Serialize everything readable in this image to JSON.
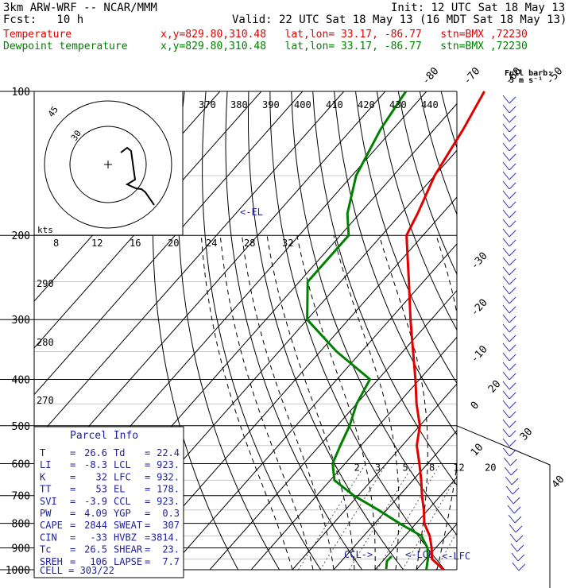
{
  "header": {
    "model": "3km ARW-WRF -- NCAR/MMM",
    "init": "Init: 12 UTC Sat 18 May 13",
    "fcst": "Fcst:   10 h",
    "valid": "Valid: 22 UTC Sat 18 May 13 (16 MDT Sat 18 May 13)",
    "temp_label": "Temperature",
    "temp_loc": "x,y=829.80,310.48   lat,lon= 33.17, -86.77   stn=BMX ,72230",
    "dew_label": "Dewpoint temperature",
    "dew_loc": "x,y=829.80,310.48   lat,lon= 33.17, -86.77   stn=BMX ,72230"
  },
  "colors": {
    "temperature": "#e00000",
    "dewpoint": "#008000",
    "parcel_text": "#2020a0",
    "barbs": "#3030b0"
  },
  "legend": {
    "full_barb": "Full barb:",
    "barb_speed": "5 m s⁻¹"
  },
  "parcel": {
    "title": "Parcel Info",
    "rows": [
      {
        "l1": "T",
        "v1": "26.6",
        "l2": "Td",
        "v2": "22.4"
      },
      {
        "l1": "LI",
        "v1": "-8.3",
        "l2": "LCL",
        "v2": "923."
      },
      {
        "l1": "K",
        "v1": "32",
        "l2": "LFC",
        "v2": "932."
      },
      {
        "l1": "TT",
        "v1": "53",
        "l2": "EL",
        "v2": "178."
      },
      {
        "l1": "SVI",
        "v1": "-3.9",
        "l2": "CCL",
        "v2": "923."
      },
      {
        "l1": "PW",
        "v1": "4.09",
        "l2": "YGP",
        "v2": "0.3"
      },
      {
        "l1": "CAPE",
        "v1": "2844",
        "l2": "SWEAT",
        "v2": "307"
      },
      {
        "l1": "CIN",
        "v1": "-33",
        "l2": "HVBZ",
        "v2": "3814."
      },
      {
        "l1": "Tc",
        "v1": "26.5",
        "l2": "SHEAR",
        "v2": "23."
      },
      {
        "l1": "SREH",
        "v1": "106",
        "l2": "LAPSE",
        "v2": "7.7"
      }
    ],
    "cell": "CELL = 303/22"
  },
  "annotations": {
    "el": "<-EL",
    "ccl": "CCL->",
    "lcl": "<-LCL",
    "lfc": "<-LFC"
  },
  "hodograph": {
    "units": "kts",
    "ring_inner": "30",
    "ring_outer": "45",
    "speed_ticks": [
      "8",
      "12",
      "16",
      "20",
      "24",
      "28",
      "32"
    ]
  },
  "chart_data": {
    "type": "line",
    "ylabel": "",
    "xlabel": "",
    "pressure_levels": [
      100,
      200,
      300,
      400,
      500,
      600,
      700,
      800,
      900,
      1000
    ],
    "temp_ticks": [
      -80,
      -70,
      -60,
      -50,
      -40,
      -30,
      -20,
      -10,
      0,
      10,
      20,
      30,
      40
    ],
    "theta_ticks": [
      370,
      380,
      390,
      400,
      410,
      420,
      430,
      440
    ],
    "theta_left_ticks": [
      290,
      280,
      270
    ],
    "mixing_ratio_ticks": [
      2,
      3,
      5,
      8,
      12,
      20
    ],
    "series": [
      {
        "name": "Temperature",
        "pressure": [
          1000,
          950,
          900,
          850,
          800,
          750,
          700,
          650,
          600,
          550,
          500,
          450,
          400,
          350,
          300,
          250,
          200,
          180,
          150,
          120,
          100
        ],
        "values": [
          26.6,
          21.5,
          19,
          16,
          12,
          9,
          5.5,
          2,
          -2,
          -6.5,
          -10,
          -15.5,
          -21,
          -27.5,
          -35,
          -43.5,
          -54,
          -56,
          -60,
          -63,
          -66
        ]
      },
      {
        "name": "Dewpoint temperature",
        "pressure": [
          1000,
          950,
          900,
          850,
          800,
          750,
          700,
          650,
          600,
          550,
          500,
          450,
          400,
          350,
          300,
          250,
          200,
          180,
          150,
          120,
          100
        ],
        "values": [
          22.4,
          20.5,
          18,
          14,
          6,
          -2,
          -11,
          -19,
          -23,
          -25,
          -27,
          -30,
          -32,
          -46,
          -60,
          -68,
          -68,
          -73,
          -79,
          -83,
          -85
        ]
      }
    ]
  }
}
